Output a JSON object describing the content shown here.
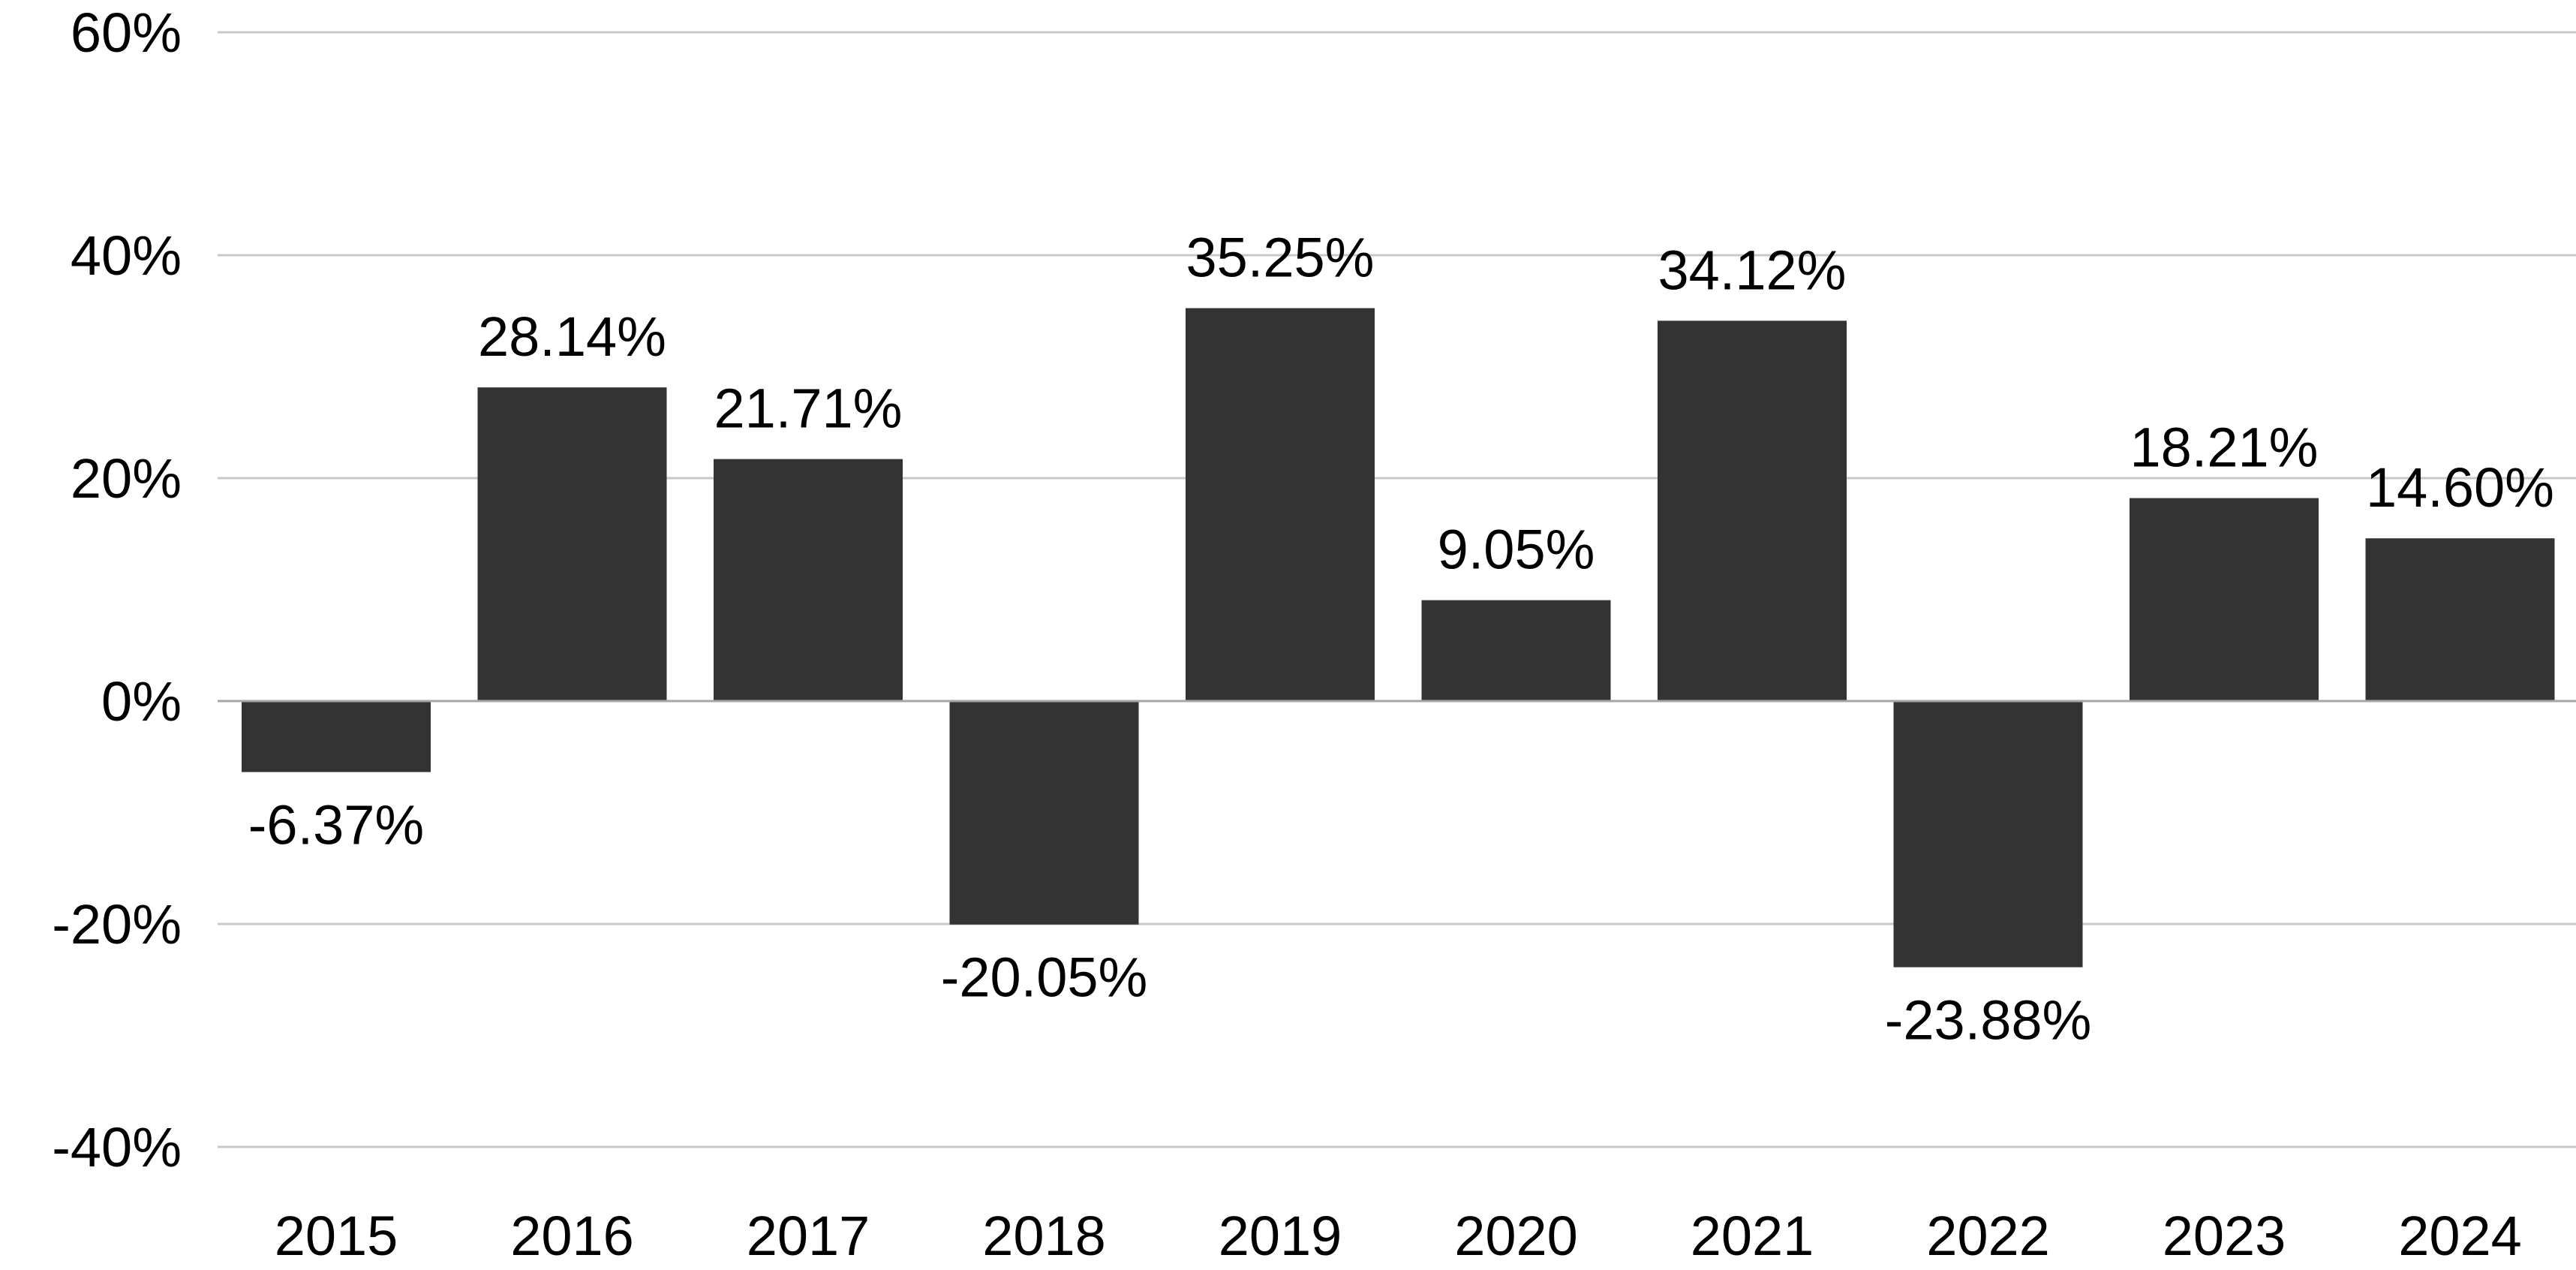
{
  "chart_data": {
    "type": "bar",
    "title": "",
    "xlabel": "",
    "ylabel": "",
    "categories": [
      "2015",
      "2016",
      "2017",
      "2018",
      "2019",
      "2020",
      "2021",
      "2022",
      "2023",
      "2024"
    ],
    "values": [
      -6.37,
      28.14,
      21.71,
      -20.05,
      35.25,
      9.05,
      34.12,
      -23.88,
      18.21,
      14.6
    ],
    "data_labels": [
      "-6.37%",
      "28.14%",
      "21.71%",
      "-20.05%",
      "35.25%",
      "9.05%",
      "34.12%",
      "-23.88%",
      "18.21%",
      "14.60%"
    ],
    "ylim": [
      -40,
      60
    ],
    "y_ticks": [
      60,
      40,
      20,
      0,
      -20,
      -40
    ],
    "y_tick_labels": [
      "60%",
      "40%",
      "20%",
      "0%",
      "-20%",
      "-40%"
    ],
    "grid": true,
    "legend": "none",
    "colors": {
      "bar": "#333333",
      "gridline": "#c8c8c8",
      "zero_line": "#a6a6a6",
      "text": "#000000"
    }
  }
}
